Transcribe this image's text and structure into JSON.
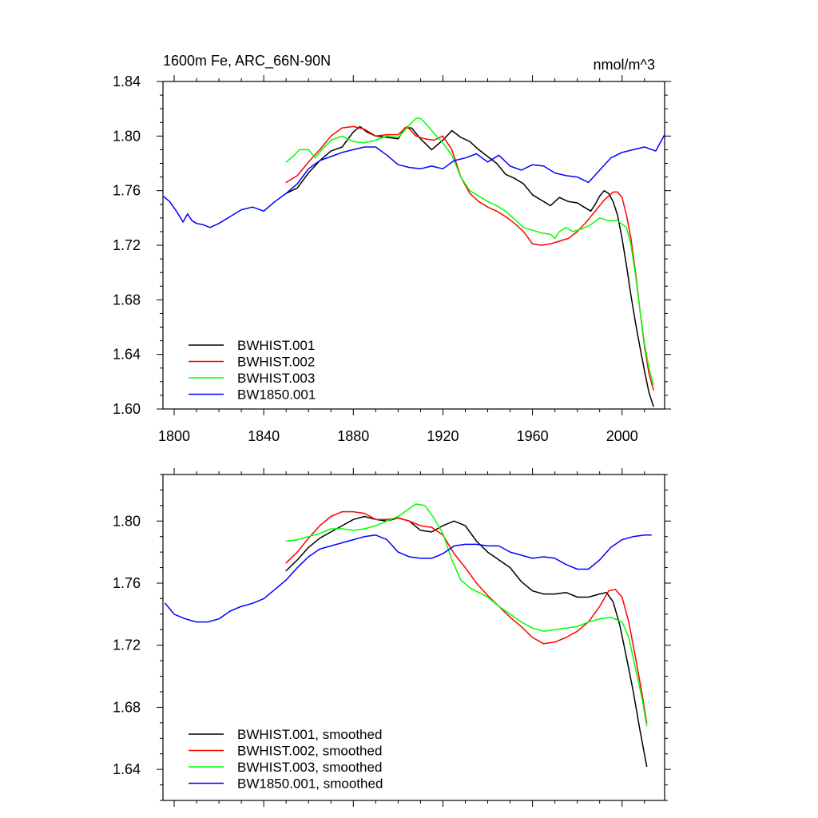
{
  "panel_title": "1600m Fe, ARC_66N-90N",
  "units": "nmol/m^3",
  "chart_data": [
    {
      "type": "line",
      "title": "1600m Fe, ARC_66N-90N",
      "ylabel": "nmol/m^3",
      "xlim": [
        1795,
        2019
      ],
      "ylim": [
        1.6,
        1.84
      ],
      "xticks": [
        1800,
        1840,
        1880,
        1920,
        1960,
        2000
      ],
      "yticks": [
        1.6,
        1.64,
        1.68,
        1.72,
        1.76,
        1.8,
        1.84
      ],
      "xtick_labels": [
        "1800",
        "1840",
        "1880",
        "1920",
        "1960",
        "2000"
      ],
      "ytick_labels": [
        "1.60",
        "1.64",
        "1.68",
        "1.72",
        "1.76",
        "1.80",
        "1.84"
      ],
      "legend_position": "bottom-left",
      "series": [
        {
          "name": "BWHIST.001",
          "color": "#000000",
          "x": [
            1850,
            1855,
            1860,
            1865,
            1870,
            1875,
            1880,
            1883,
            1886,
            1890,
            1895,
            1900,
            1903,
            1906,
            1910,
            1915,
            1920,
            1924,
            1928,
            1932,
            1936,
            1940,
            1944,
            1948,
            1952,
            1956,
            1960,
            1964,
            1968,
            1972,
            1976,
            1980,
            1983,
            1986,
            1988,
            1990,
            1992,
            1994,
            1996,
            1998,
            2000,
            2002,
            2004,
            2006,
            2008,
            2010,
            2012,
            2014
          ],
          "y": [
            1.758,
            1.762,
            1.773,
            1.782,
            1.789,
            1.792,
            1.803,
            1.807,
            1.803,
            1.8,
            1.799,
            1.798,
            1.806,
            1.806,
            1.798,
            1.79,
            1.797,
            1.804,
            1.799,
            1.796,
            1.79,
            1.785,
            1.78,
            1.772,
            1.769,
            1.765,
            1.757,
            1.753,
            1.749,
            1.755,
            1.752,
            1.751,
            1.748,
            1.745,
            1.75,
            1.756,
            1.76,
            1.758,
            1.752,
            1.742,
            1.725,
            1.705,
            1.683,
            1.663,
            1.645,
            1.628,
            1.612,
            1.602
          ]
        },
        {
          "name": "BWHIST.002",
          "color": "#ff0000",
          "x": [
            1850,
            1855,
            1860,
            1865,
            1870,
            1875,
            1880,
            1885,
            1890,
            1895,
            1900,
            1904,
            1908,
            1912,
            1916,
            1920,
            1924,
            1928,
            1932,
            1936,
            1940,
            1944,
            1948,
            1952,
            1956,
            1960,
            1964,
            1968,
            1972,
            1976,
            1980,
            1984,
            1988,
            1992,
            1996,
            1998,
            2000,
            2002,
            2004,
            2006,
            2008,
            2010,
            2012,
            2014
          ],
          "y": [
            1.766,
            1.771,
            1.781,
            1.79,
            1.8,
            1.806,
            1.807,
            1.805,
            1.8,
            1.801,
            1.801,
            1.807,
            1.8,
            1.798,
            1.797,
            1.8,
            1.79,
            1.77,
            1.758,
            1.752,
            1.748,
            1.745,
            1.741,
            1.736,
            1.73,
            1.721,
            1.72,
            1.721,
            1.723,
            1.725,
            1.73,
            1.737,
            1.745,
            1.753,
            1.759,
            1.759,
            1.755,
            1.742,
            1.725,
            1.7,
            1.672,
            1.646,
            1.626,
            1.614
          ]
        },
        {
          "name": "BWHIST.003",
          "color": "#00ff00",
          "x": [
            1850,
            1853,
            1856,
            1860,
            1863,
            1866,
            1870,
            1875,
            1880,
            1885,
            1890,
            1895,
            1900,
            1905,
            1908,
            1910,
            1913,
            1916,
            1920,
            1924,
            1928,
            1932,
            1936,
            1940,
            1944,
            1948,
            1952,
            1956,
            1960,
            1964,
            1968,
            1970,
            1972,
            1975,
            1978,
            1982,
            1986,
            1990,
            1994,
            1998,
            2002,
            2004,
            2006,
            2008,
            2010,
            2012,
            2014
          ],
          "y": [
            1.781,
            1.785,
            1.79,
            1.79,
            1.784,
            1.79,
            1.797,
            1.8,
            1.796,
            1.795,
            1.797,
            1.8,
            1.799,
            1.808,
            1.813,
            1.813,
            1.808,
            1.802,
            1.795,
            1.786,
            1.77,
            1.76,
            1.756,
            1.752,
            1.749,
            1.745,
            1.739,
            1.733,
            1.731,
            1.729,
            1.728,
            1.725,
            1.73,
            1.733,
            1.73,
            1.732,
            1.735,
            1.74,
            1.738,
            1.738,
            1.733,
            1.72,
            1.698,
            1.672,
            1.648,
            1.63,
            1.618
          ]
        },
        {
          "name": "BW1850.001",
          "color": "#0000ff",
          "x": [
            1795,
            1798,
            1801,
            1804,
            1806,
            1808,
            1810,
            1813,
            1816,
            1820,
            1825,
            1830,
            1835,
            1840,
            1845,
            1850,
            1855,
            1860,
            1865,
            1870,
            1875,
            1880,
            1885,
            1890,
            1895,
            1900,
            1905,
            1910,
            1915,
            1920,
            1925,
            1930,
            1935,
            1940,
            1945,
            1950,
            1955,
            1960,
            1965,
            1970,
            1975,
            1980,
            1985,
            1990,
            1995,
            2000,
            2005,
            2010,
            2015,
            2019
          ],
          "y": [
            1.756,
            1.752,
            1.745,
            1.737,
            1.743,
            1.738,
            1.736,
            1.735,
            1.733,
            1.736,
            1.741,
            1.746,
            1.748,
            1.745,
            1.752,
            1.758,
            1.765,
            1.776,
            1.782,
            1.785,
            1.788,
            1.79,
            1.792,
            1.792,
            1.786,
            1.779,
            1.777,
            1.776,
            1.778,
            1.776,
            1.782,
            1.784,
            1.787,
            1.781,
            1.786,
            1.778,
            1.775,
            1.779,
            1.778,
            1.773,
            1.771,
            1.77,
            1.766,
            1.775,
            1.784,
            1.788,
            1.79,
            1.792,
            1.789,
            1.801
          ]
        }
      ]
    },
    {
      "type": "line",
      "xlim": [
        1795,
        2019
      ],
      "ylim": [
        1.62,
        1.83
      ],
      "xticks": [
        1800,
        1840,
        1880,
        1920,
        1960,
        2000
      ],
      "yticks": [
        1.64,
        1.68,
        1.72,
        1.76,
        1.8
      ],
      "ytick_labels": [
        "1.64",
        "1.68",
        "1.72",
        "1.76",
        "1.80"
      ],
      "legend_position": "bottom-left",
      "series": [
        {
          "name": "BWHIST.001, smoothed",
          "color": "#000000",
          "x": [
            1850,
            1855,
            1860,
            1865,
            1870,
            1875,
            1880,
            1885,
            1890,
            1895,
            1900,
            1905,
            1910,
            1915,
            1920,
            1925,
            1930,
            1935,
            1940,
            1945,
            1950,
            1955,
            1960,
            1965,
            1970,
            1975,
            1980,
            1985,
            1990,
            1993,
            1996,
            1999,
            2002,
            2005,
            2008,
            2011
          ],
          "y": [
            1.768,
            1.775,
            1.783,
            1.789,
            1.793,
            1.797,
            1.801,
            1.803,
            1.801,
            1.8,
            1.802,
            1.8,
            1.794,
            1.793,
            1.797,
            1.8,
            1.797,
            1.787,
            1.78,
            1.775,
            1.77,
            1.761,
            1.755,
            1.753,
            1.753,
            1.754,
            1.751,
            1.751,
            1.753,
            1.754,
            1.748,
            1.733,
            1.712,
            1.69,
            1.665,
            1.642
          ]
        },
        {
          "name": "BWHIST.002, smoothed",
          "color": "#ff0000",
          "x": [
            1850,
            1855,
            1860,
            1865,
            1870,
            1875,
            1880,
            1885,
            1890,
            1895,
            1900,
            1905,
            1910,
            1915,
            1920,
            1925,
            1930,
            1935,
            1940,
            1945,
            1950,
            1955,
            1960,
            1965,
            1970,
            1975,
            1980,
            1985,
            1990,
            1994,
            1997,
            2000,
            2003,
            2006,
            2009,
            2011
          ],
          "y": [
            1.773,
            1.78,
            1.789,
            1.797,
            1.803,
            1.806,
            1.806,
            1.805,
            1.801,
            1.801,
            1.802,
            1.8,
            1.797,
            1.796,
            1.791,
            1.779,
            1.77,
            1.76,
            1.752,
            1.745,
            1.738,
            1.732,
            1.725,
            1.721,
            1.722,
            1.725,
            1.729,
            1.735,
            1.745,
            1.755,
            1.756,
            1.751,
            1.735,
            1.712,
            1.688,
            1.67
          ]
        },
        {
          "name": "BWHIST.003, smoothed",
          "color": "#00ff00",
          "x": [
            1850,
            1855,
            1860,
            1865,
            1870,
            1875,
            1880,
            1885,
            1890,
            1895,
            1900,
            1905,
            1908,
            1912,
            1916,
            1920,
            1924,
            1928,
            1932,
            1936,
            1940,
            1945,
            1950,
            1955,
            1960,
            1965,
            1970,
            1975,
            1980,
            1985,
            1990,
            1995,
            2000,
            2003,
            2006,
            2009,
            2011
          ],
          "y": [
            1.787,
            1.788,
            1.79,
            1.792,
            1.795,
            1.795,
            1.794,
            1.795,
            1.797,
            1.8,
            1.803,
            1.808,
            1.811,
            1.81,
            1.802,
            1.792,
            1.775,
            1.762,
            1.757,
            1.754,
            1.751,
            1.745,
            1.74,
            1.735,
            1.731,
            1.729,
            1.73,
            1.731,
            1.732,
            1.735,
            1.737,
            1.738,
            1.735,
            1.725,
            1.705,
            1.685,
            1.668
          ]
        },
        {
          "name": "BW1850.001, smoothed",
          "color": "#0000ff",
          "x": [
            1796,
            1800,
            1805,
            1810,
            1815,
            1820,
            1825,
            1830,
            1835,
            1840,
            1845,
            1850,
            1855,
            1860,
            1865,
            1870,
            1875,
            1880,
            1885,
            1890,
            1895,
            1900,
            1905,
            1910,
            1915,
            1920,
            1925,
            1930,
            1935,
            1940,
            1945,
            1950,
            1955,
            1960,
            1965,
            1970,
            1975,
            1980,
            1985,
            1990,
            1995,
            2000,
            2005,
            2010,
            2013
          ],
          "y": [
            1.747,
            1.74,
            1.737,
            1.735,
            1.735,
            1.737,
            1.742,
            1.745,
            1.747,
            1.75,
            1.756,
            1.762,
            1.77,
            1.777,
            1.782,
            1.784,
            1.786,
            1.788,
            1.79,
            1.791,
            1.788,
            1.78,
            1.777,
            1.776,
            1.776,
            1.779,
            1.784,
            1.785,
            1.785,
            1.784,
            1.784,
            1.78,
            1.778,
            1.776,
            1.777,
            1.776,
            1.772,
            1.769,
            1.769,
            1.775,
            1.783,
            1.788,
            1.79,
            1.791,
            1.791
          ]
        }
      ]
    }
  ]
}
